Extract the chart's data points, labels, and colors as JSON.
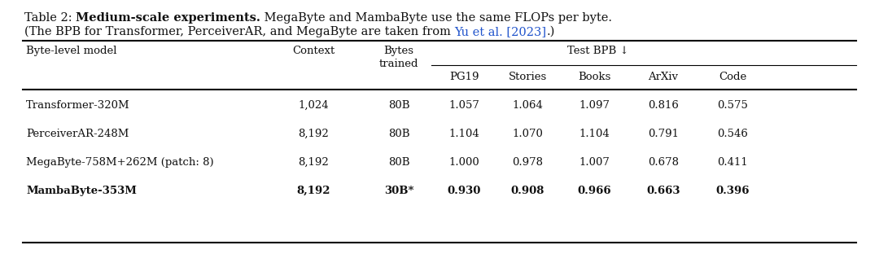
{
  "caption_line1": "Table 2: ",
  "caption_bold": "Medium-scale experiments.",
  "caption_rest1": " MegaByte and MambaByte use the same FLOPs per byte.",
  "caption_line2": "(The BPB for Transformer, PerceiverAR, and MegaByte are taken from ",
  "caption_link": "Yu et al. [2023]",
  "caption_end": ".)",
  "rows": [
    [
      "Transformer-320M",
      "1,024",
      "80B",
      "1.057",
      "1.064",
      "1.097",
      "0.816",
      "0.575",
      false
    ],
    [
      "PerceiverAR-248M",
      "8,192",
      "80B",
      "1.104",
      "1.070",
      "1.104",
      "0.791",
      "0.546",
      false
    ],
    [
      "MegaByte-758M+262M (patch: 8)",
      "8,192",
      "80B",
      "1.000",
      "0.978",
      "1.007",
      "0.678",
      "0.411",
      false
    ],
    [
      "MambaByte-353M",
      "8,192",
      "30B*",
      "0.930",
      "0.908",
      "0.966",
      "0.663",
      "0.396",
      true
    ]
  ],
  "background_color": "#ffffff",
  "link_color": "#2255cc",
  "text_color": "#111111",
  "font_size": 9.5,
  "caption_font_size": 10.5
}
